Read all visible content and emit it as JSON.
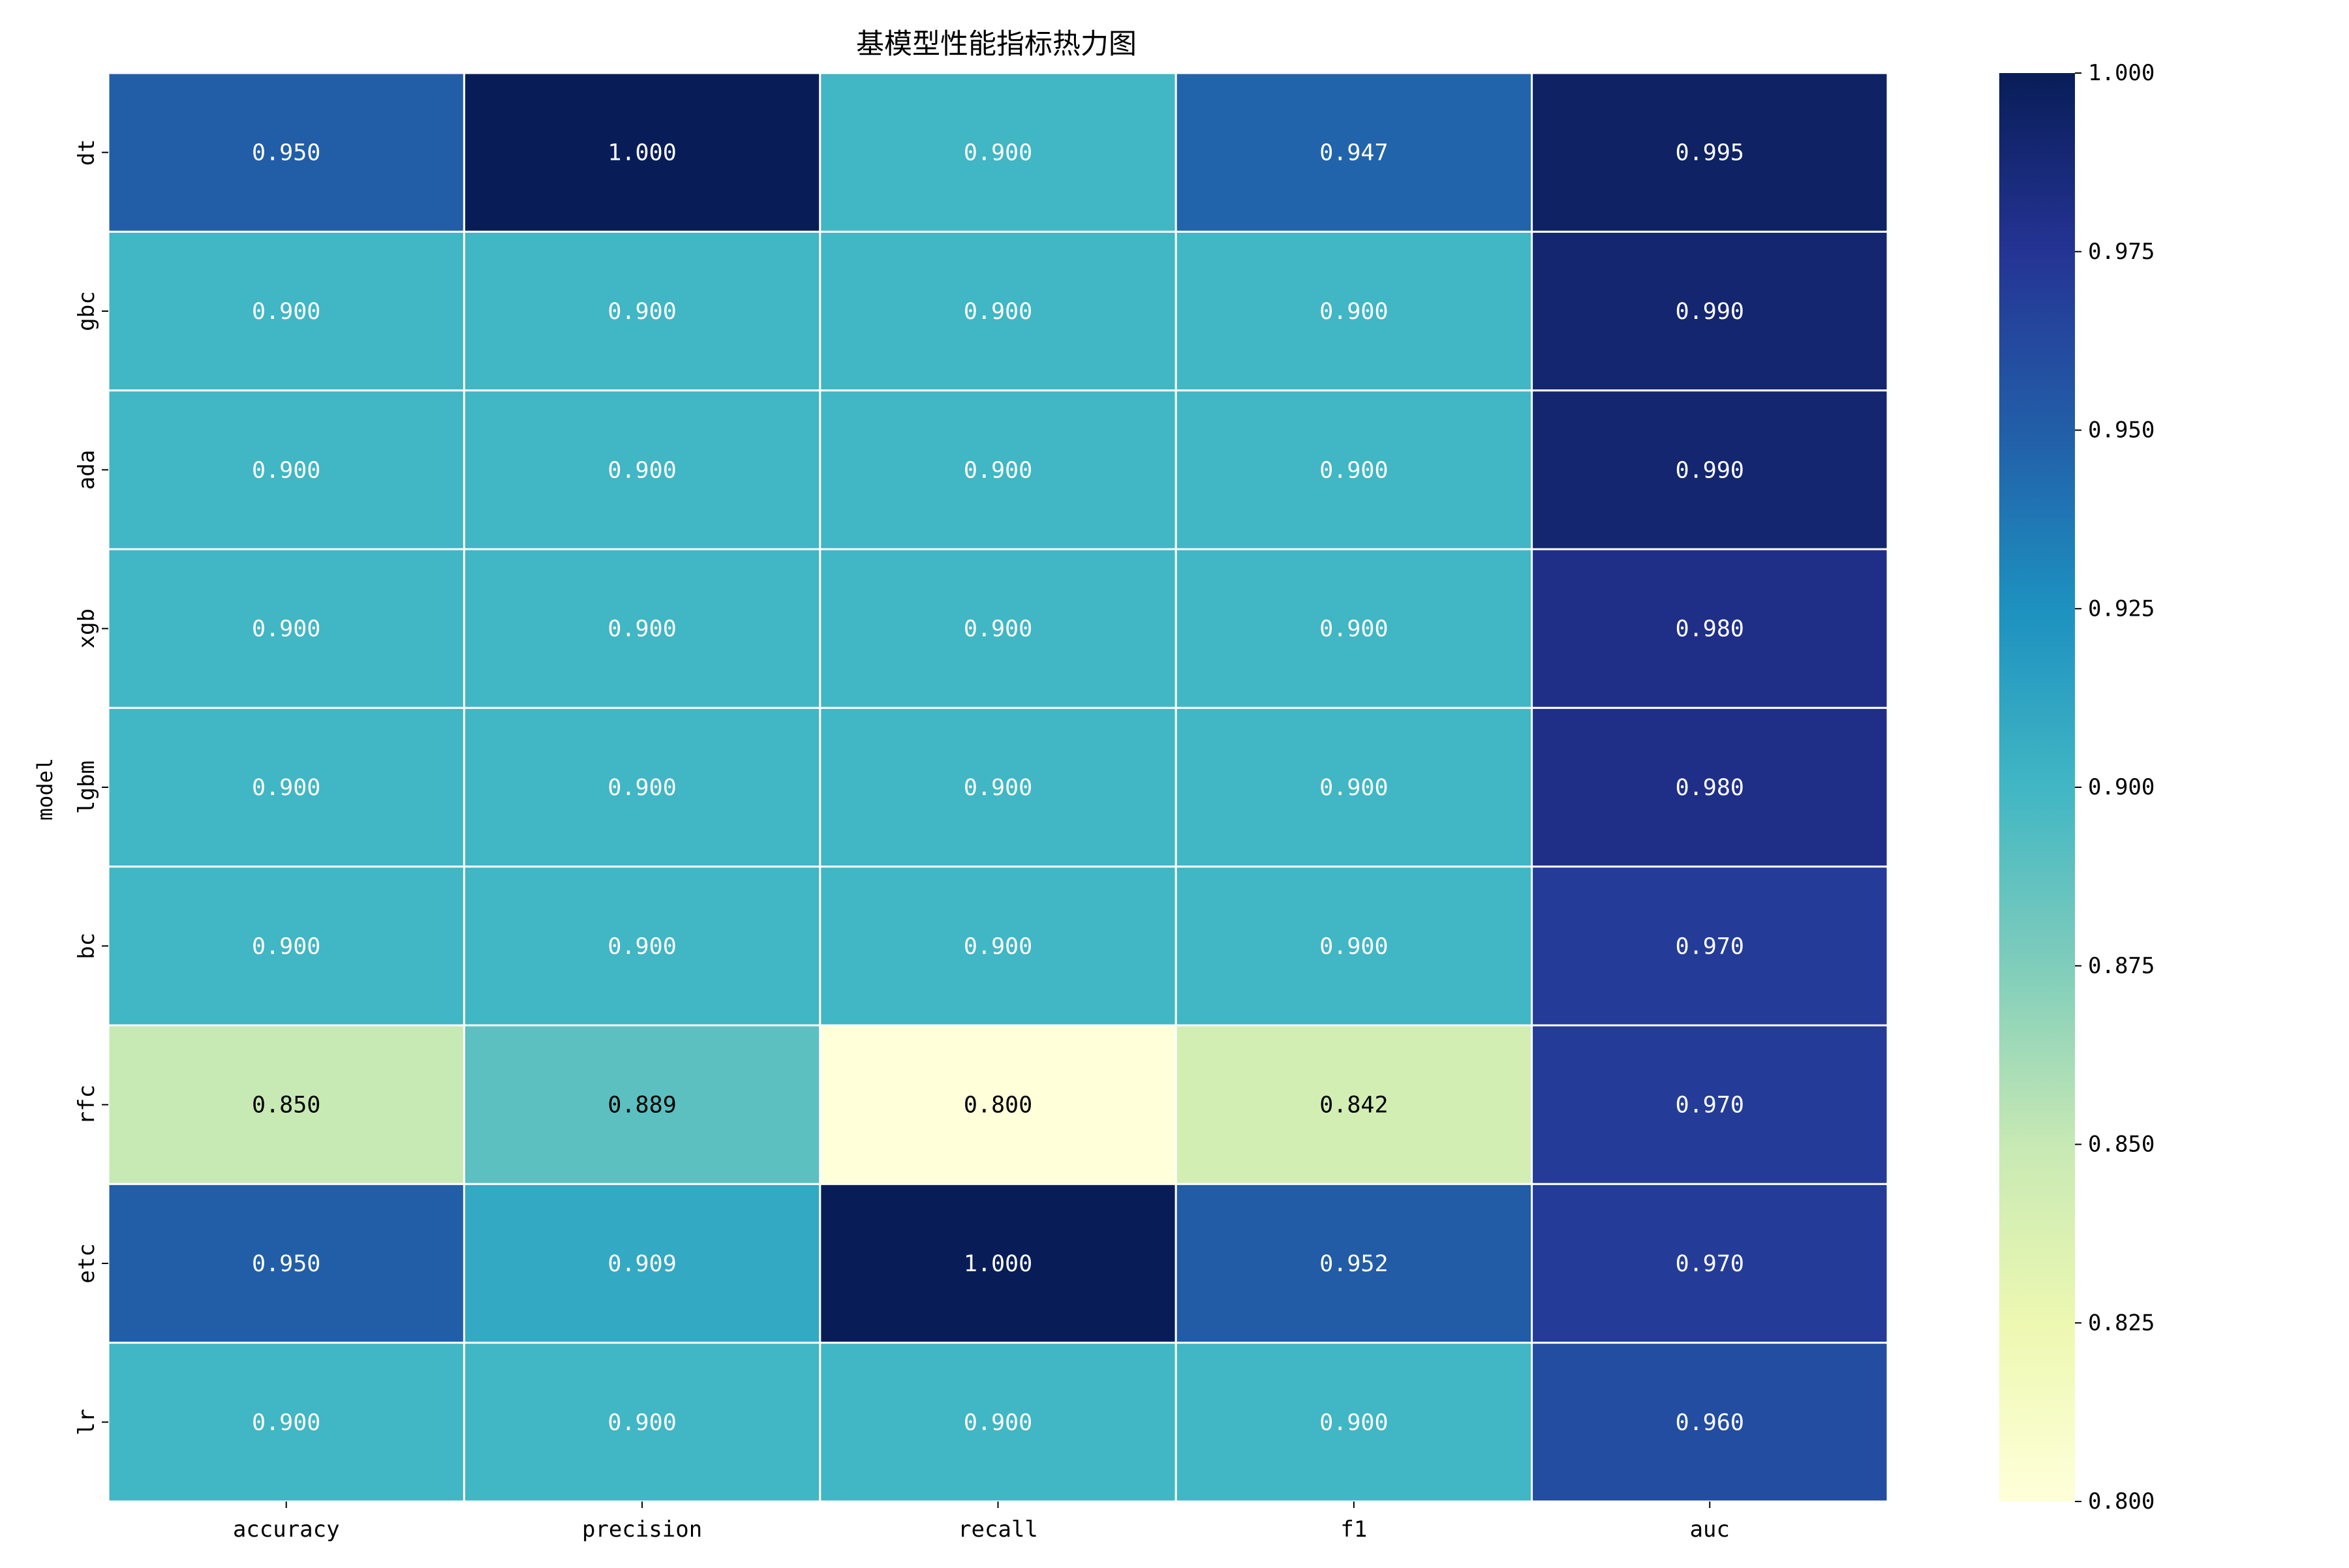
{
  "chart_data": {
    "type": "heatmap",
    "title": "基模型性能指标热力图",
    "xlabel": "",
    "ylabel": "model",
    "x_categories": [
      "accuracy",
      "precision",
      "recall",
      "f1",
      "auc"
    ],
    "y_categories": [
      "dt",
      "gbc",
      "ada",
      "xgb",
      "lgbm",
      "bc",
      "rfc",
      "etc",
      "lr"
    ],
    "values": [
      [
        0.95,
        1.0,
        0.9,
        0.947,
        0.995
      ],
      [
        0.9,
        0.9,
        0.9,
        0.9,
        0.99
      ],
      [
        0.9,
        0.9,
        0.9,
        0.9,
        0.99
      ],
      [
        0.9,
        0.9,
        0.9,
        0.9,
        0.98
      ],
      [
        0.9,
        0.9,
        0.9,
        0.9,
        0.98
      ],
      [
        0.9,
        0.9,
        0.9,
        0.9,
        0.97
      ],
      [
        0.85,
        0.889,
        0.8,
        0.842,
        0.97
      ],
      [
        0.95,
        0.909,
        1.0,
        0.952,
        0.97
      ],
      [
        0.9,
        0.9,
        0.9,
        0.9,
        0.96
      ]
    ],
    "value_format": "0.000",
    "colormap": "YlGnBu",
    "vmin": 0.8,
    "vmax": 1.0,
    "colorbar_ticks": [
      0.8,
      0.825,
      0.85,
      0.875,
      0.9,
      0.925,
      0.95,
      0.975,
      1.0
    ],
    "cell_border_color": "#ffffff",
    "grid": false
  }
}
